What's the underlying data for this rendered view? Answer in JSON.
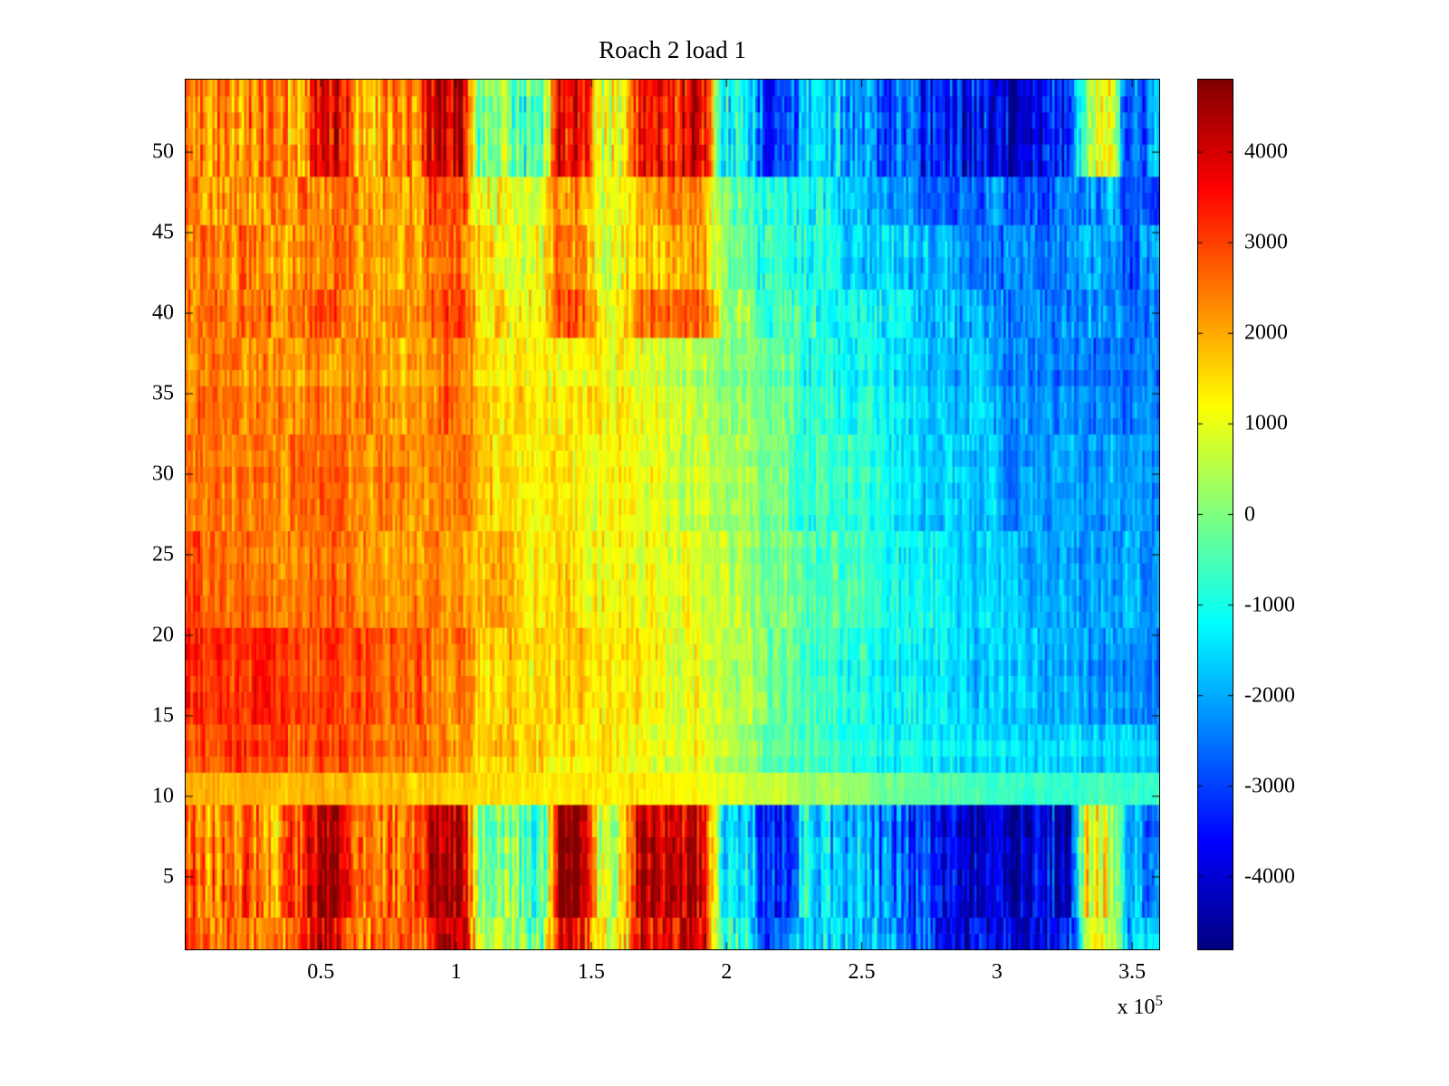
{
  "chart_data": {
    "type": "heatmap",
    "title": "Roach 2 load 1",
    "colormap": "jet",
    "xlim": [
      0,
      360000
    ],
    "ylim": [
      0.5,
      54.5
    ],
    "x_bins": 24,
    "y_rows": 54,
    "x_ticks": [
      50000,
      100000,
      150000,
      200000,
      250000,
      300000,
      350000
    ],
    "x_tick_labels": [
      "0.5",
      "1",
      "1.5",
      "2",
      "2.5",
      "3",
      "3.5"
    ],
    "x_multiplier": {
      "prefix": "x 10",
      "exponent": "5"
    },
    "y_ticks": [
      5,
      10,
      15,
      20,
      25,
      30,
      35,
      40,
      45,
      50
    ],
    "y_tick_labels": [
      "5",
      "10",
      "15",
      "20",
      "25",
      "30",
      "35",
      "40",
      "45",
      "50"
    ],
    "colorbar": {
      "min": -4800,
      "max": 4800,
      "ticks": [
        4000,
        3000,
        2000,
        1000,
        0,
        -1000,
        -2000,
        -3000,
        -4000
      ],
      "tick_labels": [
        "4000",
        "3000",
        "2000",
        "1000",
        "0",
        "-1000",
        "-2000",
        "-3000",
        "-4000"
      ]
    },
    "bands": [
      {
        "y_range": [
          1,
          2
        ],
        "noise": [
          850,
          450,
          250
        ],
        "values": [
          2700,
          2600,
          2500,
          4000,
          2500,
          2600,
          4500,
          800,
          0,
          4000,
          1100,
          3800,
          3900,
          -600,
          -2800,
          -1400,
          -1800,
          -2300,
          -3000,
          -3800,
          -3900,
          -3400,
          800,
          -1600
        ]
      },
      {
        "y_range": [
          3,
          9
        ],
        "noise": [
          1000,
          500,
          300
        ],
        "values": [
          2600,
          2800,
          2400,
          4400,
          2600,
          2700,
          4800,
          200,
          -600,
          4500,
          900,
          4200,
          4300,
          -1000,
          -3400,
          -1600,
          -2000,
          -2600,
          -3400,
          -4300,
          -4300,
          -3800,
          1200,
          -1800
        ]
      },
      {
        "y_range": [
          10,
          11
        ],
        "noise": [
          220,
          180,
          120
        ],
        "values": [
          1800,
          1700,
          1700,
          1800,
          1600,
          1600,
          1500,
          1400,
          1300,
          1300,
          1200,
          1200,
          1100,
          800,
          500,
          200,
          -100,
          -300,
          -500,
          -700,
          -800,
          -900,
          -800,
          -900
        ]
      },
      {
        "y_range": [
          12,
          14
        ],
        "noise": [
          420,
          320,
          200
        ],
        "values": [
          2900,
          3000,
          2800,
          2900,
          2600,
          2500,
          2300,
          1700,
          1500,
          1400,
          1300,
          1100,
          900,
          400,
          -200,
          -600,
          -900,
          -1100,
          -1300,
          -1500,
          -1700,
          -1700,
          -1600,
          -1800
        ]
      },
      {
        "y_range": [
          15,
          20
        ],
        "noise": [
          450,
          350,
          220
        ],
        "values": [
          3200,
          3100,
          3000,
          3000,
          2800,
          2600,
          2400,
          1800,
          1600,
          1500,
          1400,
          1200,
          1000,
          500,
          -100,
          -500,
          -900,
          -1200,
          -1500,
          -1700,
          -1900,
          -2000,
          -2100,
          -2200
        ]
      },
      {
        "y_range": [
          21,
          26
        ],
        "noise": [
          450,
          350,
          220
        ],
        "values": [
          2700,
          2600,
          2600,
          2600,
          2400,
          2300,
          2200,
          1700,
          1500,
          1400,
          1300,
          1100,
          900,
          500,
          0,
          -400,
          -800,
          -1100,
          -1400,
          -1600,
          -1800,
          -1900,
          -2000,
          -2100
        ]
      },
      {
        "y_range": [
          27,
          32
        ],
        "noise": [
          450,
          350,
          220
        ],
        "values": [
          2500,
          2400,
          2400,
          2500,
          2300,
          2200,
          2300,
          1600,
          1400,
          1300,
          1200,
          1000,
          800,
          400,
          -100,
          -500,
          -900,
          -1200,
          -1500,
          -1800,
          -2000,
          -2100,
          -2200,
          -2300
        ]
      },
      {
        "y_range": [
          33,
          38
        ],
        "noise": [
          480,
          360,
          240
        ],
        "values": [
          2400,
          2300,
          2300,
          2400,
          2200,
          2100,
          2400,
          1500,
          1300,
          1200,
          1100,
          900,
          700,
          300,
          -200,
          -700,
          -1100,
          -1400,
          -1700,
          -2000,
          -2200,
          -2300,
          -2400,
          -2400
        ]
      },
      {
        "y_range": [
          39,
          41
        ],
        "noise": [
          600,
          400,
          260
        ],
        "values": [
          2500,
          2400,
          2300,
          2600,
          2300,
          2200,
          2900,
          1400,
          1200,
          2600,
          1100,
          2400,
          2600,
          300,
          -600,
          -900,
          -1300,
          -1600,
          -1900,
          -2200,
          -2400,
          -2400,
          -2300,
          -2500
        ]
      },
      {
        "y_range": [
          42,
          45
        ],
        "noise": [
          550,
          380,
          260
        ],
        "values": [
          2400,
          2300,
          2200,
          2500,
          2200,
          2100,
          2600,
          1300,
          1100,
          2000,
          1000,
          1800,
          2000,
          200,
          -800,
          -1100,
          -1500,
          -1800,
          -2100,
          -2400,
          -2500,
          -2500,
          -2200,
          -2600
        ]
      },
      {
        "y_range": [
          46,
          48
        ],
        "noise": [
          620,
          400,
          280
        ],
        "values": [
          2500,
          2400,
          2300,
          2700,
          2300,
          2200,
          3000,
          1200,
          900,
          2400,
          900,
          2200,
          2300,
          0,
          -1000,
          -1300,
          -1700,
          -2000,
          -2300,
          -2600,
          -2700,
          -2600,
          -2000,
          -2700
        ]
      },
      {
        "y_range": [
          49,
          54
        ],
        "noise": [
          950,
          500,
          300
        ],
        "values": [
          2600,
          2500,
          2400,
          3600,
          2400,
          2500,
          4300,
          100,
          -500,
          3800,
          700,
          3600,
          3800,
          -800,
          -3000,
          -1800,
          -2200,
          -2600,
          -3200,
          -3600,
          -3600,
          -3200,
          600,
          -2400
        ]
      }
    ]
  }
}
